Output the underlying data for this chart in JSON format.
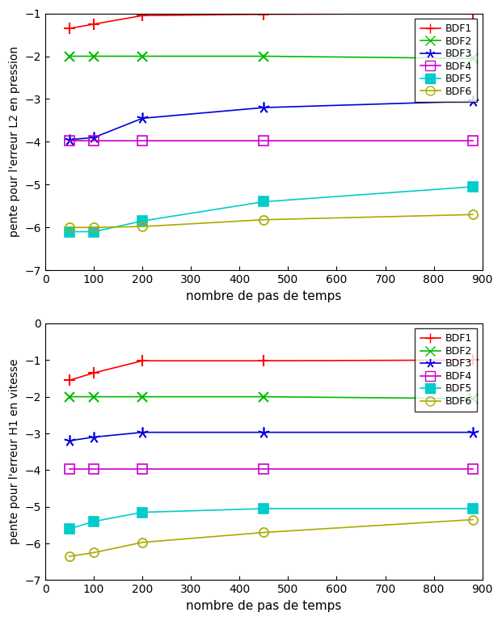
{
  "x": [
    50,
    100,
    200,
    450,
    880
  ],
  "top": {
    "ylabel": "pente pour l'erreur L2 en pression",
    "xlabel": "nombre de pas de temps",
    "ylim": [
      -7,
      -1
    ],
    "yticks": [
      -7,
      -6,
      -5,
      -4,
      -3,
      -2,
      -1
    ],
    "xlim": [
      0,
      900
    ],
    "xticks": [
      0,
      100,
      200,
      300,
      400,
      500,
      600,
      700,
      800,
      900
    ],
    "BDF1": [
      -1.35,
      -1.25,
      -1.05,
      -1.02,
      -1.0
    ],
    "BDF2": [
      -2.0,
      -2.0,
      -2.0,
      -2.0,
      -2.05
    ],
    "BDF3": [
      -3.95,
      -3.9,
      -3.45,
      -3.2,
      -3.05
    ],
    "BDF4": [
      -3.97,
      -3.97,
      -3.97,
      -3.97,
      -3.97
    ],
    "BDF5": [
      -6.1,
      -6.1,
      -5.85,
      -5.4,
      -5.05
    ],
    "BDF6": [
      -6.0,
      -6.0,
      -5.98,
      -5.82,
      -5.7
    ]
  },
  "bottom": {
    "ylabel": "pente pour l'erreur H1 en vitesse",
    "xlabel": "nombre de pas de temps",
    "ylim": [
      -7,
      0
    ],
    "yticks": [
      -7,
      -6,
      -5,
      -4,
      -3,
      -2,
      -1,
      0
    ],
    "xlim": [
      0,
      900
    ],
    "xticks": [
      0,
      100,
      200,
      300,
      400,
      500,
      600,
      700,
      800,
      900
    ],
    "BDF1": [
      -1.55,
      -1.35,
      -1.02,
      -1.02,
      -1.0
    ],
    "BDF2": [
      -2.0,
      -2.0,
      -2.0,
      -2.0,
      -2.05
    ],
    "BDF3": [
      -3.2,
      -3.1,
      -2.97,
      -2.97,
      -2.97
    ],
    "BDF4": [
      -3.97,
      -3.97,
      -3.97,
      -3.97,
      -3.97
    ],
    "BDF5": [
      -5.6,
      -5.4,
      -5.15,
      -5.05,
      -5.05
    ],
    "BDF6": [
      -6.35,
      -6.25,
      -5.97,
      -5.7,
      -5.35
    ]
  },
  "series": [
    "BDF1",
    "BDF2",
    "BDF3",
    "BDF4",
    "BDF5",
    "BDF6"
  ],
  "colors": {
    "BDF1": "#ff0000",
    "BDF2": "#00bb00",
    "BDF3": "#0000dd",
    "BDF4": "#cc00cc",
    "BDF5": "#00cccc",
    "BDF6": "#aaaa00"
  },
  "markers": {
    "BDF1": "P",
    "BDF2": "x",
    "BDF3": "*",
    "BDF4": "s",
    "BDF5": "s",
    "BDF6": "o"
  },
  "markerfacecolors": {
    "BDF1": "#ff0000",
    "BDF2": "#00bb00",
    "BDF3": "none",
    "BDF4": "none",
    "BDF5": "#00cccc",
    "BDF6": "none"
  },
  "markersizes": {
    "BDF1": 8,
    "BDF2": 8,
    "BDF3": 10,
    "BDF4": 8,
    "BDF5": 8,
    "BDF6": 8
  }
}
